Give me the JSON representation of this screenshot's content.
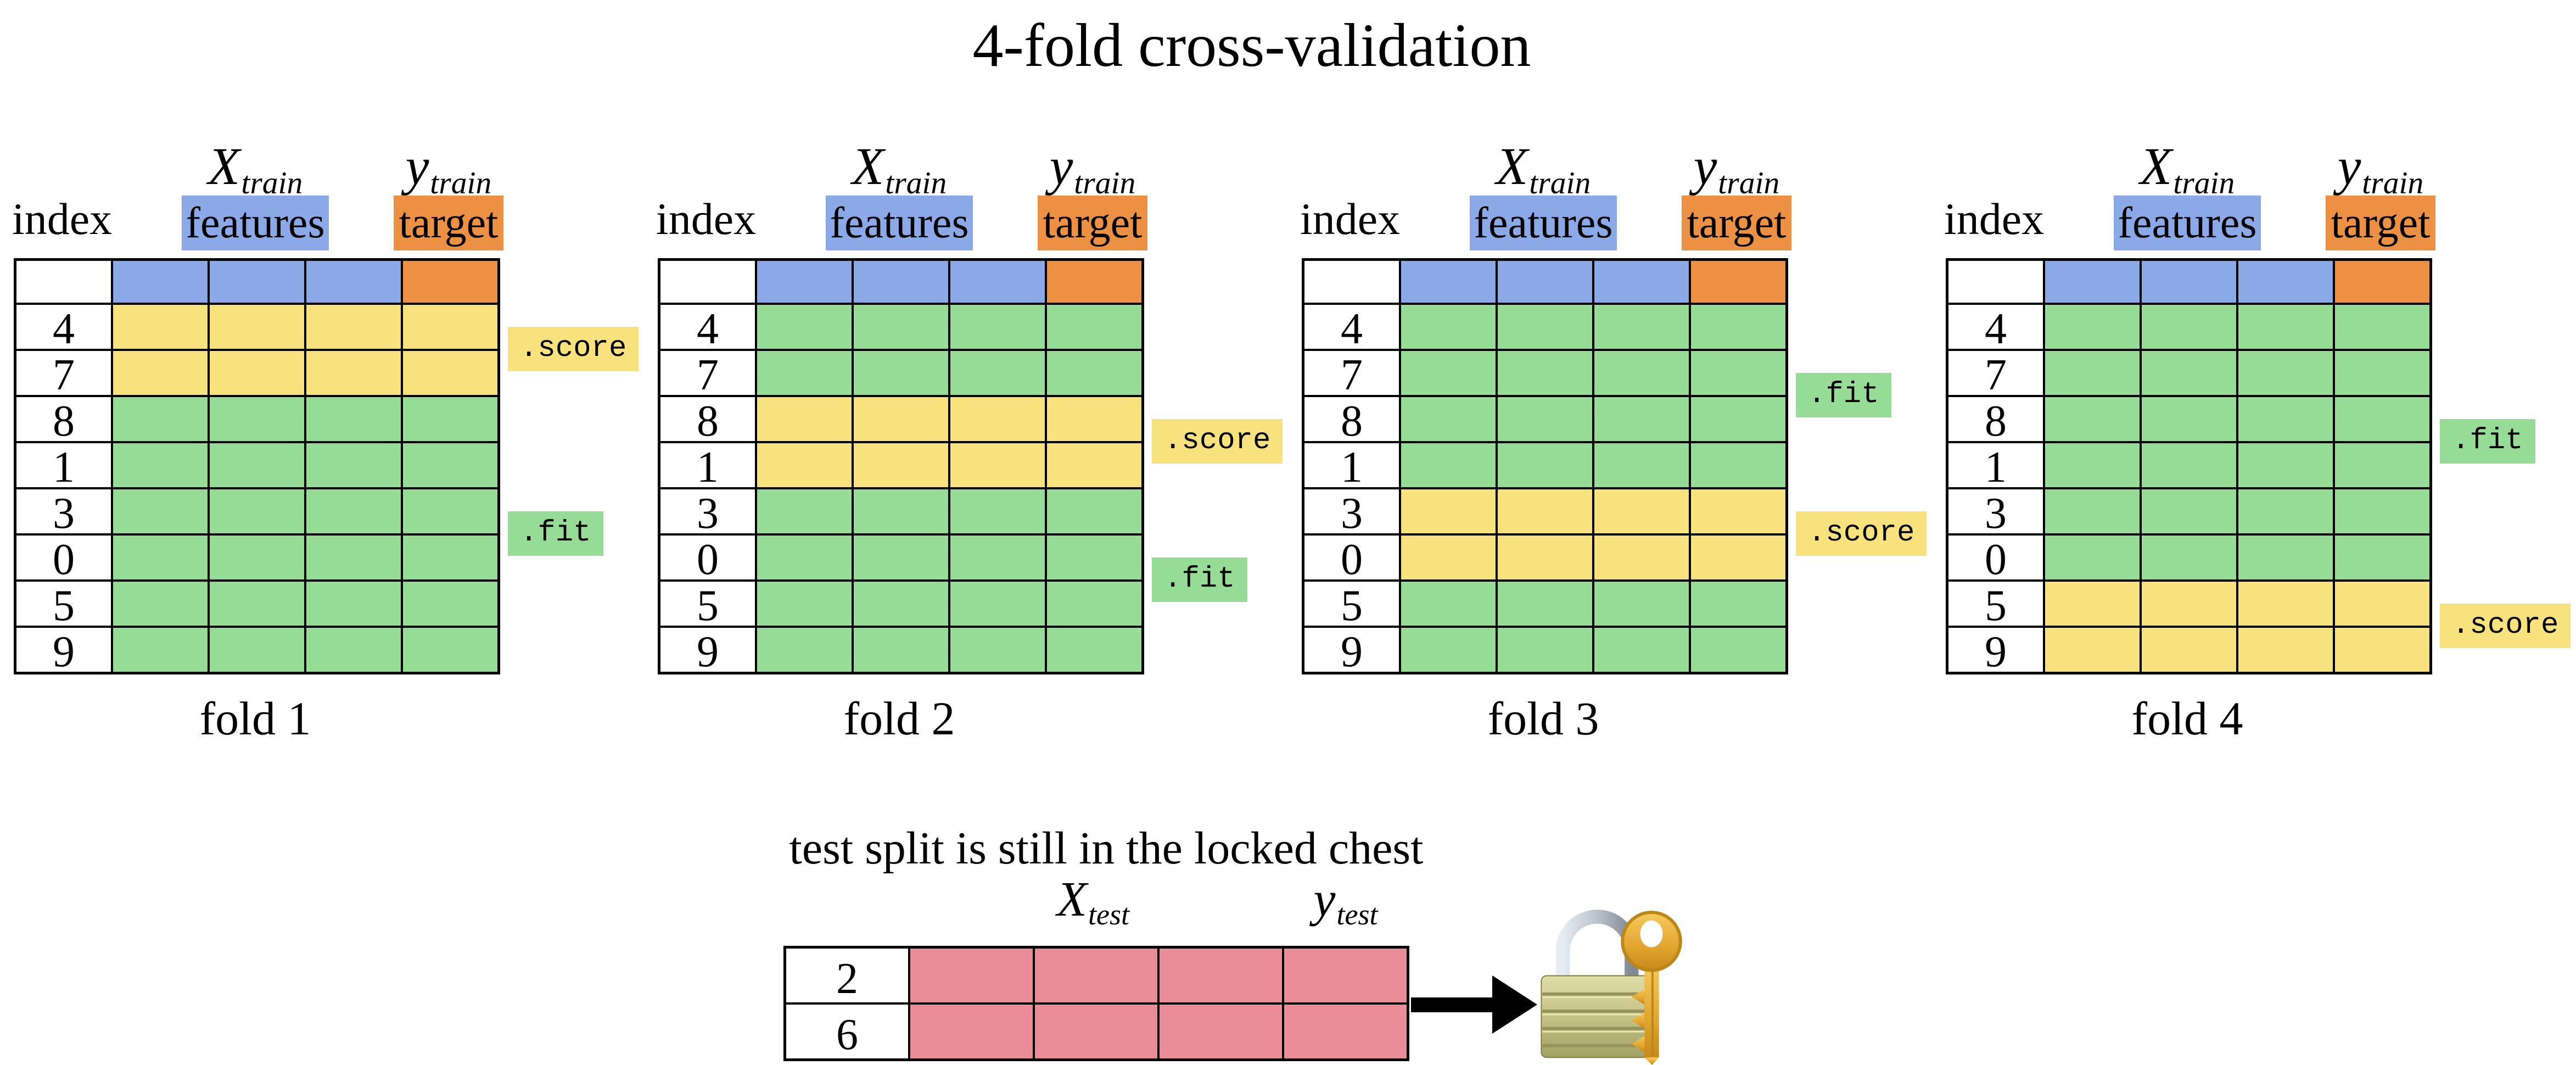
{
  "title": "4-fold cross-validation",
  "colors": {
    "features_blue": "#8BA9E6",
    "target_orange": "#EC9143",
    "score_yellow": "#F8E27D",
    "fit_green": "#96DC96",
    "test_pink": "#EB8D99",
    "arrow_black": "#000000"
  },
  "fold_header": {
    "index_label": "index",
    "x_main": "X",
    "x_sub": "train",
    "features_label": "features",
    "y_main": "y",
    "y_sub": "train",
    "target_label": "target",
    "num_feature_columns": 3,
    "num_target_columns": 1
  },
  "row_indices": [
    "4",
    "7",
    "8",
    "1",
    "3",
    "0",
    "5",
    "9"
  ],
  "folds": [
    {
      "caption": "fold 1",
      "score_label": ".score",
      "fit_label": ".fit",
      "score_rows": [
        0,
        1
      ]
    },
    {
      "caption": "fold 2",
      "score_label": ".score",
      "fit_label": ".fit",
      "score_rows": [
        2,
        3
      ]
    },
    {
      "caption": "fold 3",
      "score_label": ".score",
      "fit_label": ".fit",
      "score_rows": [
        4,
        5
      ]
    },
    {
      "caption": "fold 4",
      "score_label": ".score",
      "fit_label": ".fit",
      "score_rows": [
        6,
        7
      ]
    }
  ],
  "test_section": {
    "caption": "test split is still in the locked chest",
    "x_main": "X",
    "x_sub": "test",
    "y_main": "y",
    "y_sub": "test",
    "row_indices": [
      "2",
      "6"
    ],
    "num_feature_columns": 3,
    "num_target_columns": 1,
    "arrow_icon": "right-arrow",
    "lock_icon": "closed-lock-with-key"
  }
}
